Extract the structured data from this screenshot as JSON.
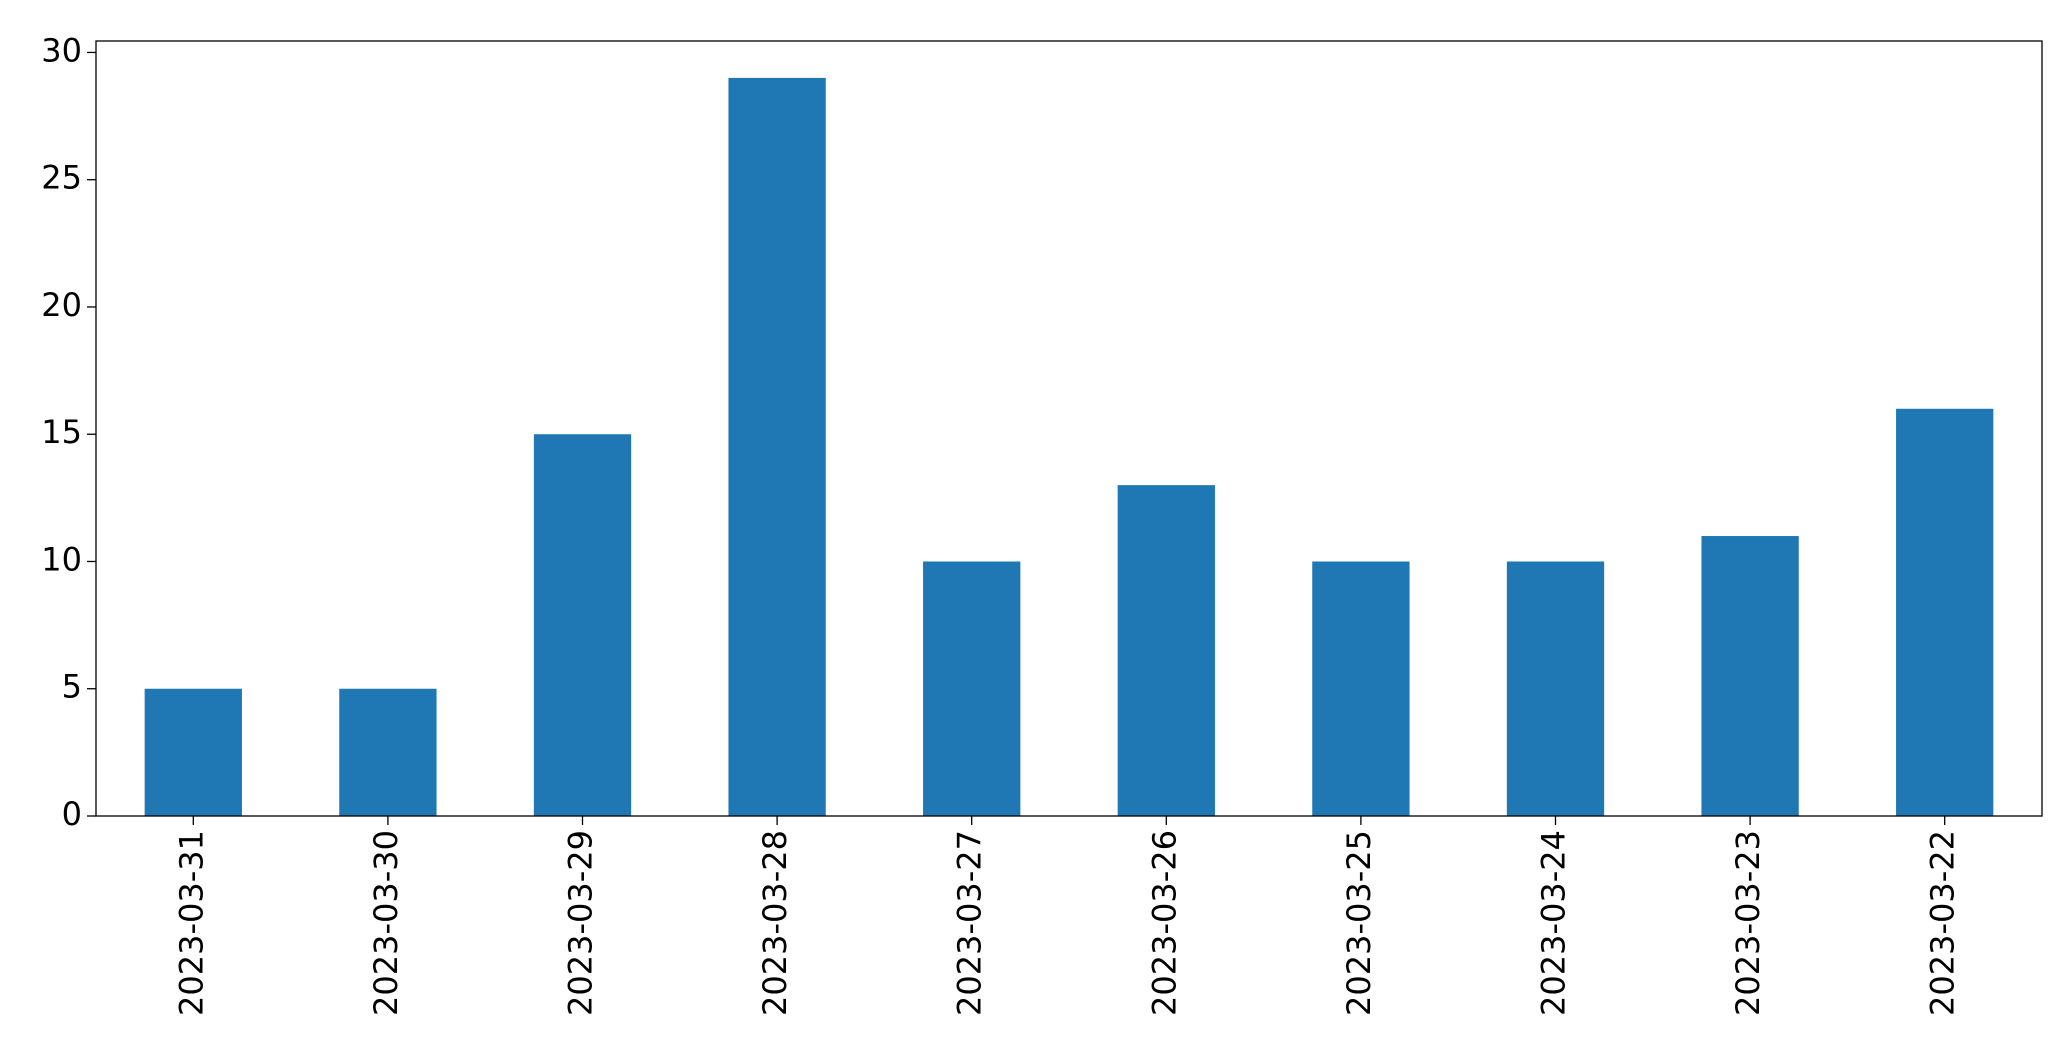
{
  "chart_data": {
    "type": "bar",
    "categories": [
      "2023-03-31",
      "2023-03-30",
      "2023-03-29",
      "2023-03-28",
      "2023-03-27",
      "2023-03-26",
      "2023-03-25",
      "2023-03-24",
      "2023-03-23",
      "2023-03-22"
    ],
    "values": [
      5,
      5,
      15,
      29,
      10,
      13,
      10,
      10,
      11,
      16
    ],
    "color": "#1f77b4",
    "ylim": [
      0,
      30.45
    ],
    "yticks": [
      0,
      5,
      10,
      15,
      20,
      25,
      30
    ],
    "grid": false
  }
}
